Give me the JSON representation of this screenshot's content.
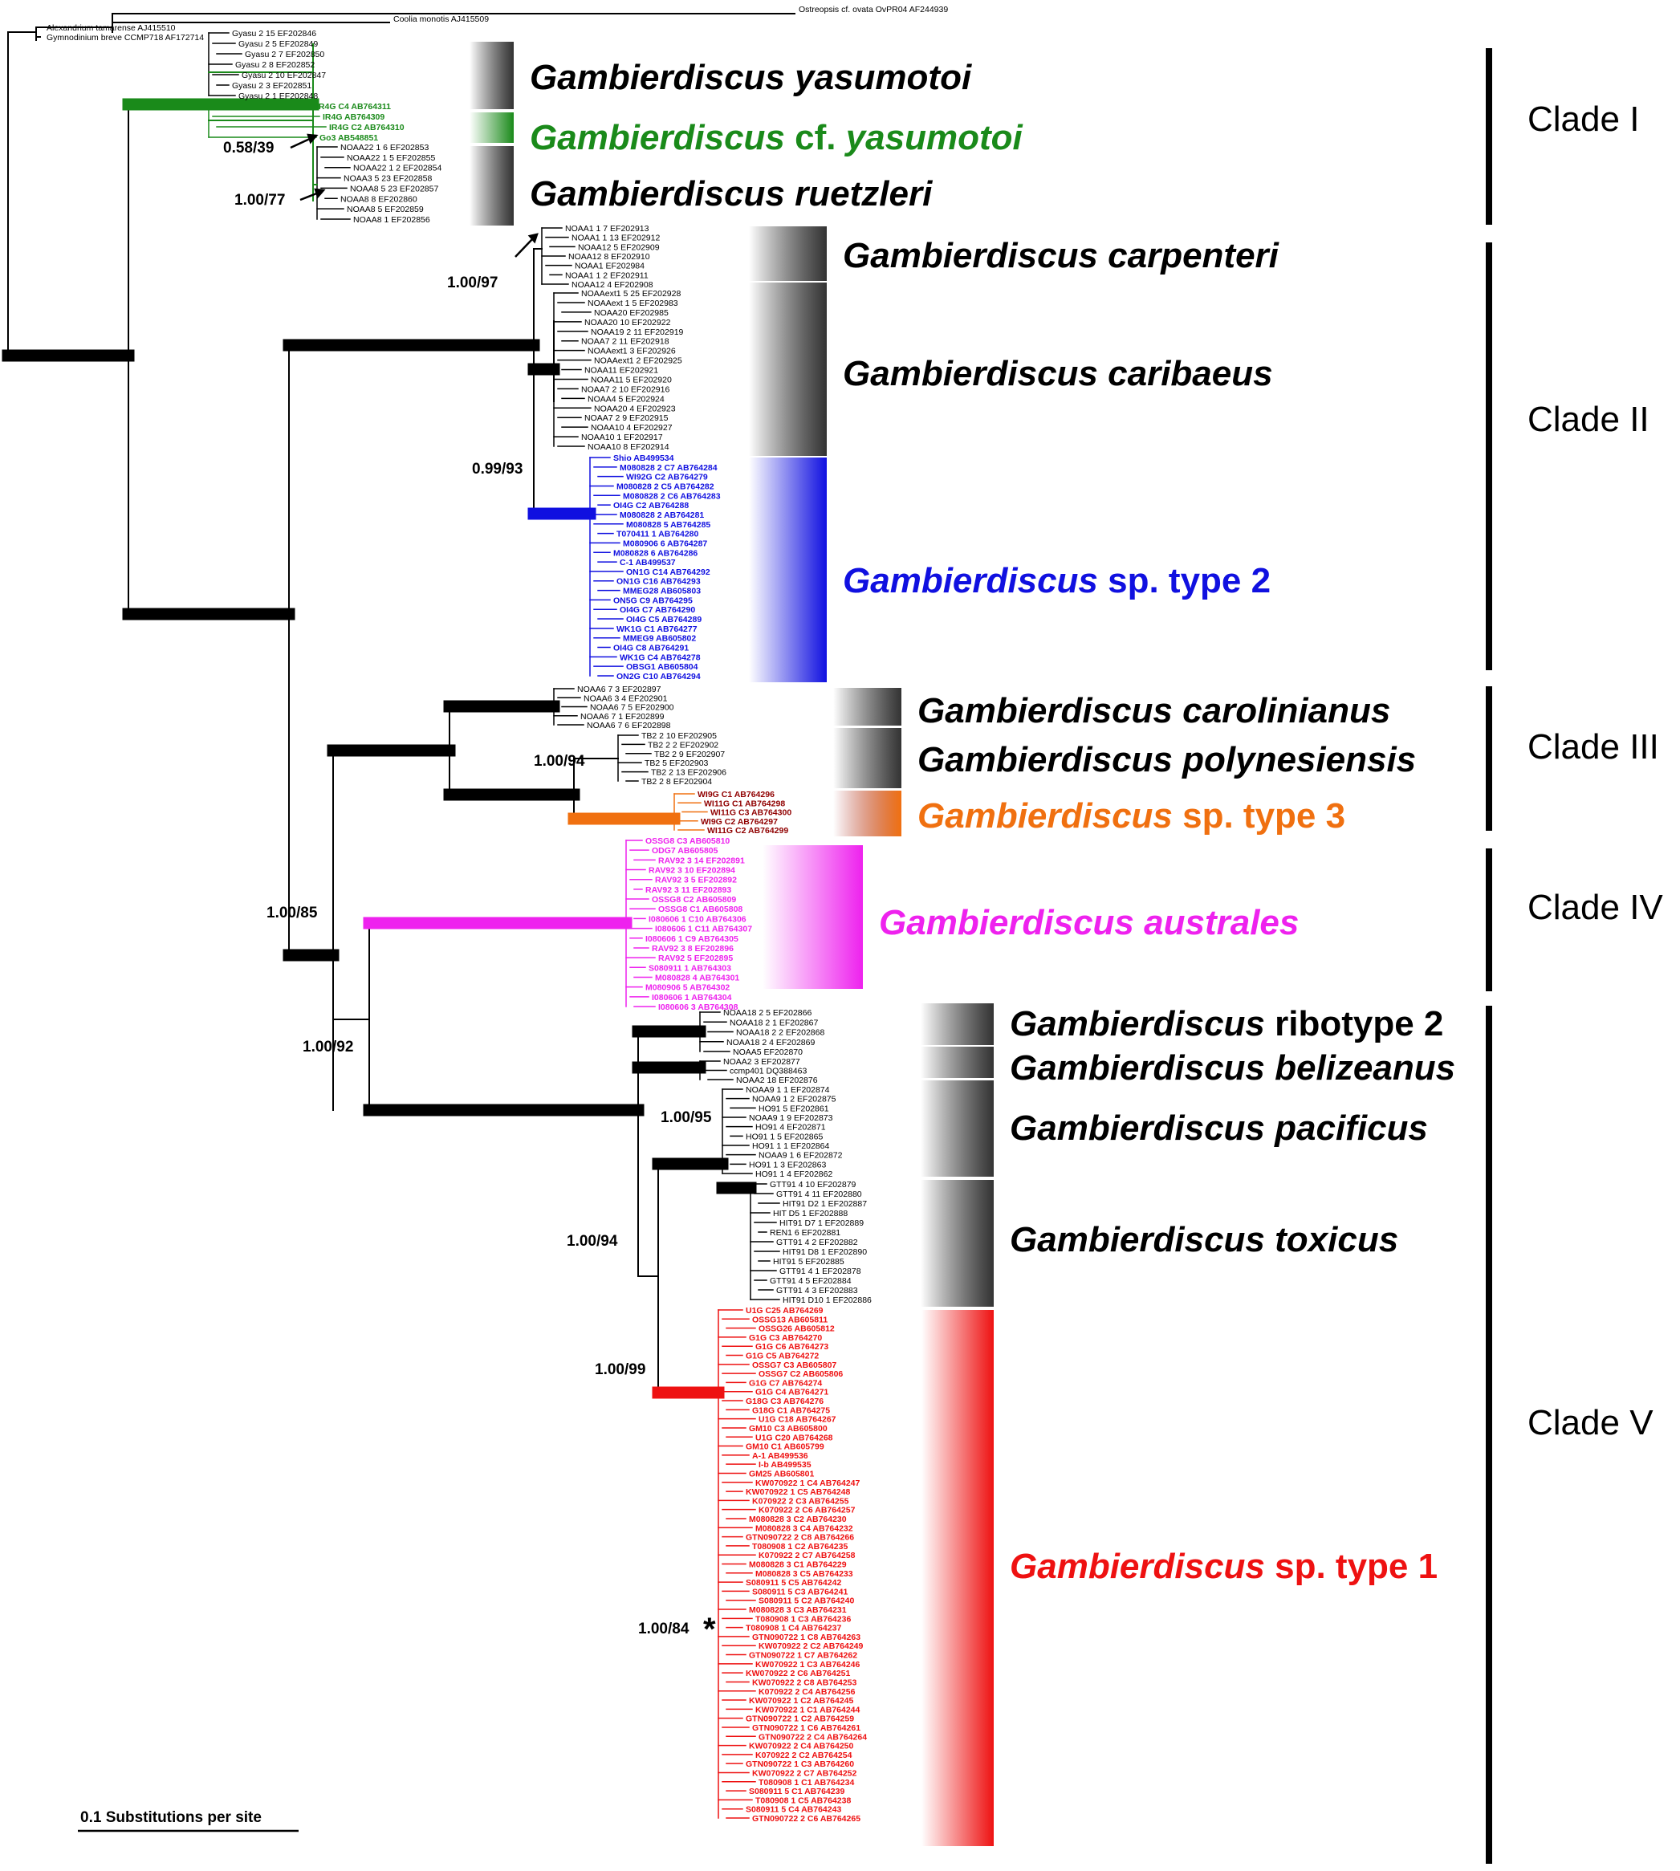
{
  "colors": {
    "black": "#000000",
    "green": "#1a8a1a",
    "blue": "#1010e0",
    "orange": "#f07010",
    "darkred": "#900000",
    "magenta": "#ee22ee",
    "red": "#ee1111"
  },
  "outgroups": [
    "Ostreopsis cf. ovata OvPR04 AF244939",
    "Coolia monotis AJ415509",
    "Alexandrium tamarense AJ415510",
    "Gymnodinium breve CCMP718 AF172714"
  ],
  "groups": [
    {
      "key": "yasumotoi",
      "color": "black",
      "tips": [
        "Gyasu 2 15 EF202846",
        "Gyasu 2 5 EF202849",
        "Gyasu 2 7 EF202850",
        "Gyasu 2 8 EF202852",
        "Gyasu 2 10 EF202847",
        "Gyasu 2 3 EF202851",
        "Gyasu 2 1 EF202848"
      ]
    },
    {
      "key": "cf_yasumotoi",
      "color": "green",
      "bold": true,
      "tips": [
        "IR4G C4 AB764311",
        "IR4G AB764309",
        "IR4G C2 AB764310",
        "Go3 AB548851"
      ]
    },
    {
      "key": "ruetzleri",
      "color": "black",
      "tips": [
        "NOAA22 1 6 EF202853",
        "NOAA22 1 5 EF202855",
        "NOAA22 1 2 EF202854",
        "NOAA3 5 23 EF202858",
        "NOAA8 5 23 EF202857",
        "NOAA8 8 EF202860",
        "NOAA8 5 EF202859",
        "NOAA8 1 EF202856"
      ]
    },
    {
      "key": "carpenteri",
      "color": "black",
      "tips": [
        "NOAA1 1 7 EF202913",
        "NOAA1 1 13 EF202912",
        "NOAA12 5 EF202909",
        "NOAA12 8 EF202910",
        "NOAA1 EF202984",
        "NOAA1 1 2 EF202911",
        "NOAA12 4 EF202908"
      ]
    },
    {
      "key": "caribaeus",
      "color": "black",
      "tips": [
        "NOAAext1 5 25 EF202928",
        "NOAAext 1 5 EF202983",
        "NOAA20 EF202985",
        "NOAA20 10 EF202922",
        "NOAA19 2 11 EF202919",
        "NOAA7 2 11 EF202918",
        "NOAAext1 3 EF202926",
        "NOAAext1 2 EF202925",
        "NOAA11 EF202921",
        "NOAA11 5 EF202920",
        "NOAA7 2 10 EF202916",
        "NOAA4 5 EF202924",
        "NOAA20 4 EF202923",
        "NOAA7 2 9 EF202915",
        "NOAA10 4 EF202927",
        "NOAA10 1 EF202917",
        "NOAA10 8 EF202914"
      ]
    },
    {
      "key": "type2",
      "color": "blue",
      "bold": true,
      "tips": [
        "Shio AB499534",
        "M080828 2 C7 AB764284",
        "WI92G C2 AB764279",
        "M080828 2 C5 AB764282",
        "M080828 2 C6 AB764283",
        "OI4G C2 AB764288",
        "M080828 2 AB764281",
        "M080828 5 AB764285",
        "T070411 1 AB764280",
        "M080906 6 AB764287",
        "M080828 6 AB764286",
        "C-1 AB499537",
        "ON1G C14 AB764292",
        "ON1G C16 AB764293",
        "MMEG28 AB605803",
        "ON5G C9 AB764295",
        "OI4G C7 AB764290",
        "OI4G C5 AB764289",
        "WK1G C1 AB764277",
        "MMEG9 AB605802",
        "OI4G C8 AB764291",
        "WK1G C4 AB764278",
        "OBSG1 AB605804",
        "ON2G C10 AB764294"
      ]
    },
    {
      "key": "carolinianus",
      "color": "black",
      "tips": [
        "NOAA6 7 3 EF202897",
        "NOAA6 3 4 EF202901",
        "NOAA6 7 5 EF202900",
        "NOAA6 7 1 EF202899",
        "NOAA6 7 6 EF202898"
      ]
    },
    {
      "key": "polynesiensis",
      "color": "black",
      "tips": [
        "TB2 2 10 EF202905",
        "TB2 2 2 EF202902",
        "TB2 2 9 EF202907",
        "TB2 5 EF202903",
        "TB2 2 13 EF202906",
        "TB2 2 8 EF202904"
      ]
    },
    {
      "key": "type3",
      "color": "darkred",
      "bold": true,
      "tips": [
        "WI9G C1 AB764296",
        "WI11G C1 AB764298",
        "WI11G C3 AB764300",
        "WI9G C2 AB764297",
        "WI11G C2 AB764299"
      ]
    },
    {
      "key": "australes",
      "color": "magenta",
      "bold": true,
      "tips": [
        "OSSG8 C3 AB605810",
        "ODG7 AB605805",
        "RAV92 3 14 EF202891",
        "RAV92 3 10 EF202894",
        "RAV92 3 5 EF202892",
        "RAV92 3 11 EF202893",
        "OSSG8 C2 AB605809",
        "OSSG8 C1 AB605808",
        "I080606 1 C10 AB764306",
        "I080606 1 C11 AB764307",
        "I080606 1 C9 AB764305",
        "RAV92 3 8 EF202896",
        "RAV92 5 EF202895",
        "S080911 1 AB764303",
        "M080828 4 AB764301",
        "M080906 5 AB764302",
        "I080606 1 AB764304",
        "I080606 3 AB764308"
      ]
    },
    {
      "key": "ribotype2",
      "color": "black",
      "tips": [
        "NOAA18 2 5 EF202866",
        "NOAA18 2 1 EF202867",
        "NOAA18 2 2 EF202868",
        "NOAA18 2 4 EF202869",
        "NOAA5 EF202870"
      ]
    },
    {
      "key": "belizeanus",
      "color": "black",
      "tips": [
        "NOAA2 3 EF202877",
        "ccmp401 DQ388463",
        "NOAA2 18 EF202876"
      ]
    },
    {
      "key": "pacificus",
      "color": "black",
      "tips": [
        "NOAA9 1 1 EF202874",
        "NOAA9 1 2 EF202875",
        "HO91 5 EF202861",
        "NOAA9 1 9 EF202873",
        "HO91 4 EF202871",
        "HO91 1 5 EF202865",
        "HO91 1 1 EF202864",
        "NOAA9 1 6 EF202872",
        "HO91 1 3 EF202863",
        "HO91 1 4 EF202862"
      ]
    },
    {
      "key": "toxicus",
      "color": "black",
      "tips": [
        "GTT91 4 10 EF202879",
        "GTT91 4 11 EF202880",
        "HIT91 D2 1 EF202887",
        "HIT D5 1 EF202888",
        "HIT91 D7 1 EF202889",
        "REN1 6 EF202881",
        "GTT91 4 2 EF202882",
        "HIT91 D8 1 EF202890",
        "HIT91 5 EF202885",
        "GTT91 4 1 EF202878",
        "GTT91 4 5 EF202884",
        "GTT91 4 3 EF202883",
        "HIT91 D10 1 EF202886"
      ]
    },
    {
      "key": "type1",
      "color": "red",
      "bold": true,
      "tips": [
        "U1G C25 AB764269",
        "OSSG13 AB605811",
        "OSSG26 AB605812",
        "G1G C3 AB764270",
        "G1G C6 AB764273",
        "G1G C5 AB764272",
        "OSSG7 C3 AB605807",
        "OSSG7 C2 AB605806",
        "G1G C7 AB764274",
        "G1G C4 AB764271",
        "G18G C3 AB764276",
        "G18G C1 AB764275",
        "U1G C18 AB764267",
        "GM10 C3 AB605800",
        "U1G C20 AB764268",
        "GM10 C1 AB605799",
        "A-1 AB499536",
        "I-b AB499535",
        "GM25 AB605801",
        "KW070922 1 C4 AB764247",
        "KW070922 1 C5 AB764248",
        "K070922 2 C3 AB764255",
        "K070922 2 C6 AB764257",
        "M080828 3 C2 AB764230",
        "M080828 3 C4 AB764232",
        "GTN090722 2 C8 AB764266",
        "T080908 1 C2 AB764235",
        "K070922 2 C7 AB764258",
        "M080828 3 C1 AB764229",
        "M080828 3 C5 AB764233",
        "S080911 5 C5 AB764242",
        "S080911 5 C3 AB764241",
        "S080911 5 C2 AB764240",
        "M080828 3 C3 AB764231",
        "T080908 1 C3 AB764236",
        "T080908 1 C4 AB764237",
        "GTN090722 1 C8 AB764263",
        "KW070922 2 C2 AB764249",
        "GTN090722 1 C7 AB764262",
        "KW070922 1 C3 AB764246",
        "KW070922 2 C6 AB764251",
        "KW070922 2 C8 AB764253",
        "K070922 2 C4 AB764256",
        "KW070922 1 C2 AB764245",
        "KW070922 1 C1 AB764244",
        "GTN090722 1 C2 AB764259",
        "GTN090722 1 C6 AB764261",
        "GTN090722 2 C4 AB764264",
        "KW070922 2 C4 AB764250",
        "K070922 2 C2 AB764254",
        "GTN090722 1 C3 AB764260",
        "KW070922 2 C7 AB764252",
        "T080908 1 C1 AB764234",
        "S080911 5 C1 AB764239",
        "T080908 1 C5 AB764238",
        "S080911 5 C4 AB764243",
        "GTN090722 2 C6 AB764265"
      ]
    }
  ],
  "species_labels": [
    {
      "key": "yasumotoi",
      "italic": "Gambierdiscus yasumotoi",
      "plain": "",
      "color": "black"
    },
    {
      "key": "cf_yasumotoi",
      "italic": "Gambierdiscus",
      "plain": "cf.",
      "italic2": "yasumotoi",
      "color": "green"
    },
    {
      "key": "ruetzleri",
      "italic": "Gambierdiscus ruetzleri",
      "plain": "",
      "color": "black"
    },
    {
      "key": "carpenteri",
      "italic": "Gambierdiscus carpenteri",
      "plain": "",
      "color": "black"
    },
    {
      "key": "caribaeus",
      "italic": "Gambierdiscus caribaeus",
      "plain": "",
      "color": "black"
    },
    {
      "key": "type2",
      "italic": "Gambierdiscus",
      "plain": "sp. type 2",
      "color": "blue"
    },
    {
      "key": "carolinianus",
      "italic": "Gambierdiscus carolinianus",
      "plain": "",
      "color": "black"
    },
    {
      "key": "polynesiensis",
      "italic": "Gambierdiscus polynesiensis",
      "plain": "",
      "color": "black"
    },
    {
      "key": "type3",
      "italic": "Gambierdiscus",
      "plain": "sp. type 3",
      "color": "orange"
    },
    {
      "key": "australes",
      "italic": "Gambierdiscus australes",
      "plain": "",
      "color": "magenta"
    },
    {
      "key": "ribotype2",
      "italic": "Gambierdiscus",
      "plain": "ribotype 2",
      "color": "black"
    },
    {
      "key": "belizeanus",
      "italic": "Gambierdiscus belizeanus",
      "plain": "",
      "color": "black"
    },
    {
      "key": "pacificus",
      "italic": "Gambierdiscus pacificus",
      "plain": "",
      "color": "black"
    },
    {
      "key": "toxicus",
      "italic": "Gambierdiscus toxicus",
      "plain": "",
      "color": "black"
    },
    {
      "key": "type1",
      "italic": "Gambierdiscus",
      "plain": "sp. type 1",
      "color": "red"
    }
  ],
  "clades": [
    "Clade I",
    "Clade II",
    "Clade III",
    "Clade IV",
    "Clade V"
  ],
  "support_values": [
    "0.58/39",
    "1.00/77",
    "1.00/97",
    "0.99/93",
    "1.00/94",
    "1.00/85",
    "1.00/92",
    "1.00/95",
    "1.00/94",
    "1.00/99",
    "1.00/84"
  ],
  "asterisk": "*",
  "scale_bar": {
    "label": "0.1 Substitutions per site"
  }
}
